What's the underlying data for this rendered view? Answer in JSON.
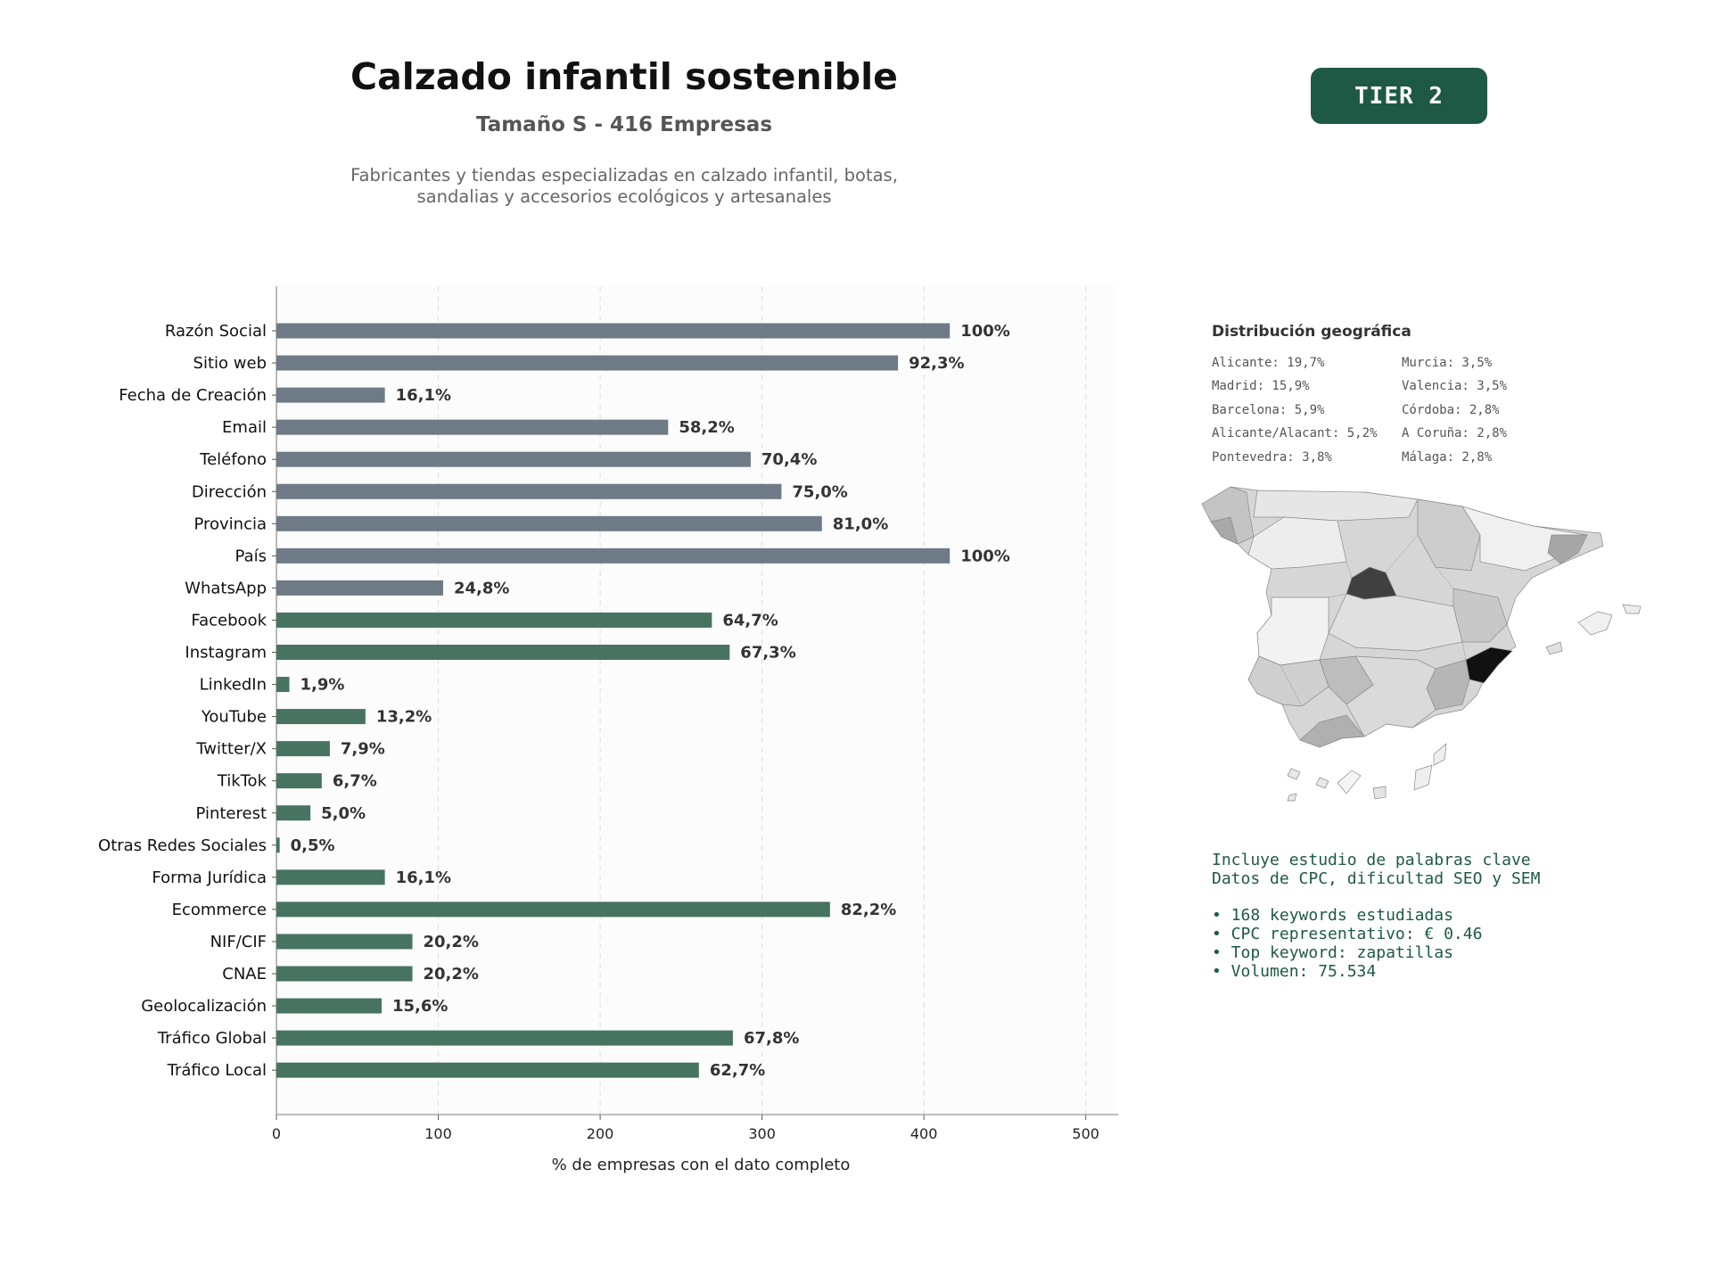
{
  "header": {
    "title": "Calzado infantil sostenible",
    "subtitle": "Tamaño S - 416 Empresas",
    "description_lines": [
      "Fabricantes y tiendas especializadas en calzado infantil, botas,",
      "sandalias y accesorios ecológicos y artesanales"
    ],
    "tier_label": "TIER 2"
  },
  "chart_data": {
    "type": "bar",
    "orientation": "horizontal",
    "categories": [
      "Razón Social",
      "Sitio web",
      "Fecha de Creación",
      "Email",
      "Teléfono",
      "Dirección",
      "Provincia",
      "País",
      "WhatsApp",
      "Facebook",
      "Instagram",
      "LinkedIn",
      "YouTube",
      "Twitter/X",
      "TikTok",
      "Pinterest",
      "Otras Redes Sociales",
      "Forma Jurídica",
      "Ecommerce",
      "NIF/CIF",
      "CNAE",
      "Geolocalización",
      "Tráfico Global",
      "Tráfico Local"
    ],
    "values": [
      416,
      384,
      67,
      242,
      293,
      312,
      337,
      416,
      103,
      269,
      280,
      8,
      55,
      33,
      28,
      21,
      2,
      67,
      342,
      84,
      84,
      65,
      282,
      261
    ],
    "labels": [
      "100%",
      "92,3%",
      "16,1%",
      "58,2%",
      "70,4%",
      "75,0%",
      "81,0%",
      "100%",
      "24,8%",
      "64,7%",
      "67,3%",
      "1,9%",
      "13,2%",
      "7,9%",
      "6,7%",
      "5,0%",
      "0,5%",
      "16,1%",
      "82,2%",
      "20,2%",
      "20,2%",
      "15,6%",
      "67,8%",
      "62,7%"
    ],
    "groups": [
      "base",
      "base",
      "base",
      "base",
      "base",
      "base",
      "base",
      "base",
      "base",
      "extra",
      "extra",
      "extra",
      "extra",
      "extra",
      "extra",
      "extra",
      "extra",
      "extra",
      "extra",
      "extra",
      "extra",
      "extra",
      "extra",
      "extra"
    ],
    "group_colors": {
      "base": "#6e7a85",
      "extra": "#477361"
    },
    "xlabel": "% de empresas con el dato completo",
    "ylabel": "",
    "xlim": [
      0,
      520
    ],
    "xticks": [
      0,
      100,
      200,
      300,
      400,
      500
    ],
    "grid": "x dashed",
    "legend": "none"
  },
  "geo": {
    "title": "Distribución geográfica",
    "column_left": [
      "Alicante: 19,7%",
      "Madrid: 15,9%",
      "Barcelona: 5,9%",
      "Alicante/Alacant: 5,2%",
      "Pontevedra: 3,8%"
    ],
    "column_right": [
      "Murcia: 3,5%",
      "Valencia: 3,5%",
      "Córdoba: 2,8%",
      "A Coruña: 2,8%",
      "Málaga: 2,8%"
    ]
  },
  "keywords": {
    "line1": "Incluye estudio de palabras clave",
    "line2": "Datos de CPC, dificultad SEO y SEM",
    "bullets": [
      "• 168 keywords estudiadas",
      "• CPC representativo: € 0.46",
      "• Top keyword: zapatillas",
      "• Volumen: 75.534"
    ]
  }
}
